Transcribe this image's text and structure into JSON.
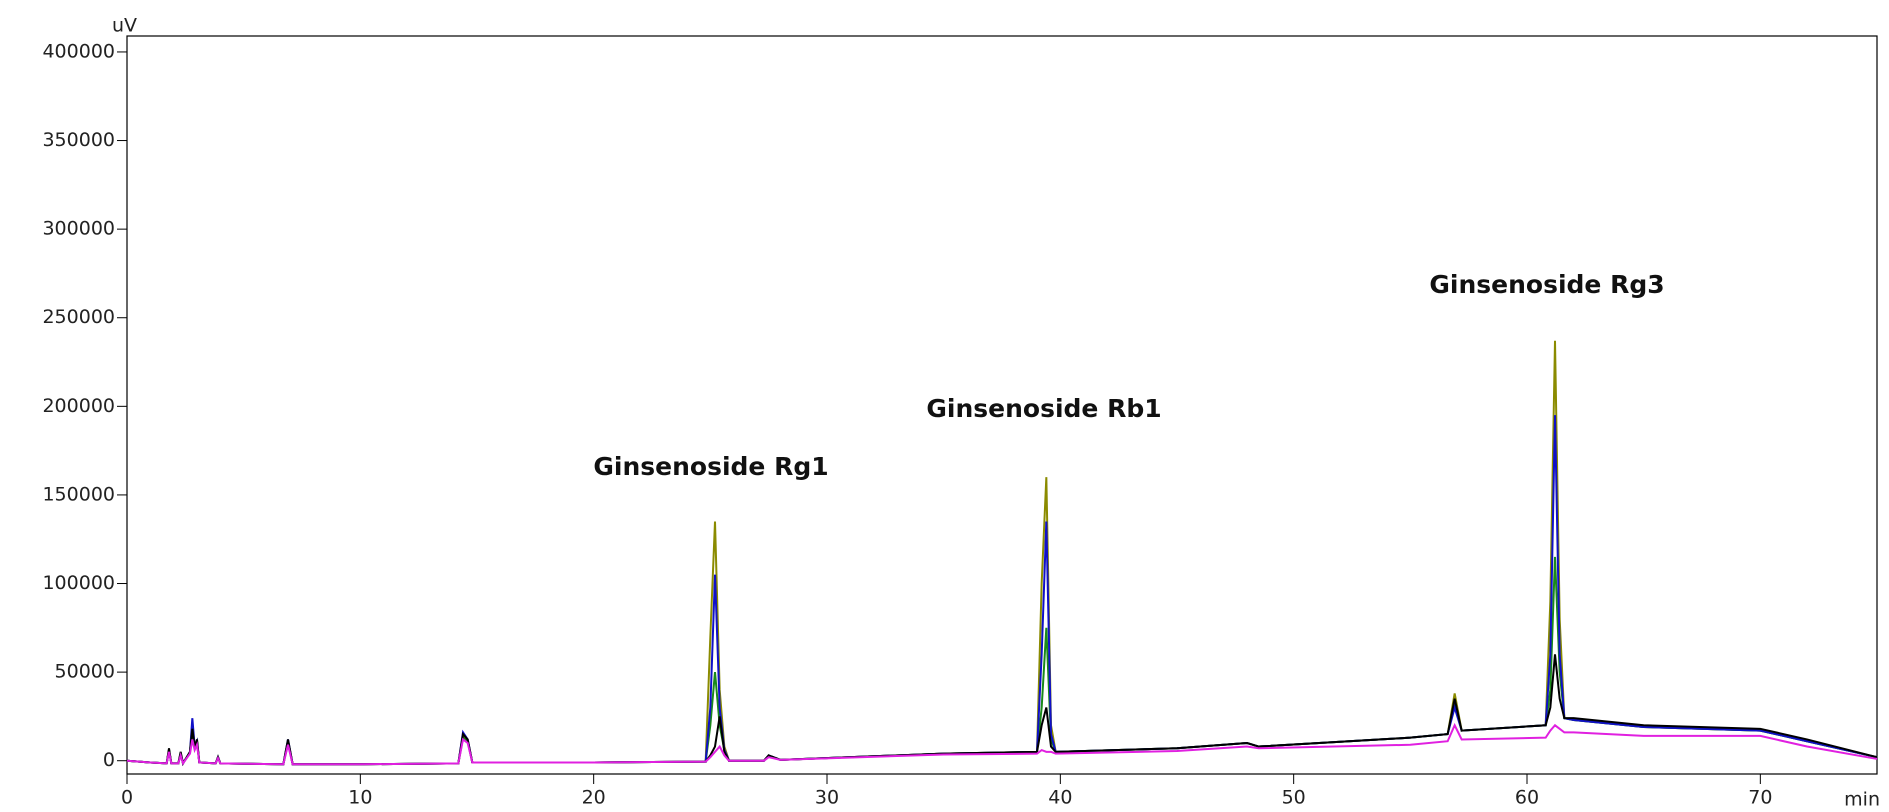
{
  "chart_data": {
    "type": "line",
    "x_label": "min",
    "y_label": "uV",
    "annotations": [
      "Ginsenoside Rg1",
      "Ginsenoside Rb1",
      "Ginsenoside Rg3"
    ],
    "xlim": [
      0,
      75
    ],
    "xticks": [
      0,
      10,
      20,
      30,
      40,
      50,
      60,
      70
    ],
    "ylim": [
      -7500,
      409000
    ],
    "yticks": [
      0,
      50000,
      100000,
      150000,
      200000,
      250000,
      300000,
      350000,
      400000
    ],
    "x": [
      0,
      1,
      1.7,
      1.8,
      1.9,
      2.2,
      2.3,
      2.4,
      2.7,
      2.8,
      2.9,
      3.0,
      3.1,
      3.8,
      3.9,
      4.0,
      6.7,
      6.9,
      7.1,
      10,
      14.2,
      14.4,
      14.6,
      14.8,
      20,
      24.8,
      25.0,
      25.2,
      25.4,
      25.6,
      25.8,
      27.3,
      27.5,
      28,
      35,
      39.0,
      39.2,
      39.4,
      39.6,
      39.8,
      45,
      48,
      48.5,
      55,
      56.6,
      56.9,
      57.2,
      60.8,
      61.0,
      61.2,
      61.4,
      61.6,
      62,
      65,
      70,
      72,
      75
    ],
    "series": [
      {
        "color": "#8b8b00",
        "values": [
          0,
          -1000,
          -1500,
          6000,
          -1500,
          -1500,
          4000,
          -1500,
          5000,
          20000,
          8000,
          11000,
          -1000,
          -1500,
          2000,
          -1500,
          -2000,
          11000,
          -2000,
          -2000,
          -1500,
          14000,
          11000,
          -1000,
          -1000,
          -500,
          70000,
          135000,
          40000,
          8000,
          0,
          0,
          3000,
          500,
          4000,
          5000,
          100000,
          160000,
          20000,
          5000,
          7000,
          10000,
          8000,
          13000,
          15000,
          38000,
          17000,
          20000,
          90000,
          237000,
          80000,
          24000,
          23000,
          19000,
          17000,
          11000,
          2000
        ]
      },
      {
        "color": "#1a8a1a",
        "values": [
          0,
          -1000,
          -1500,
          6000,
          -1500,
          -1500,
          4000,
          -1500,
          5000,
          16000,
          8000,
          10000,
          -1000,
          -1500,
          2000,
          -1500,
          -2000,
          10000,
          -2000,
          -2000,
          -1500,
          13000,
          11000,
          -1000,
          -1000,
          -500,
          20000,
          50000,
          20000,
          6000,
          0,
          0,
          3000,
          500,
          4000,
          5000,
          30000,
          75000,
          12000,
          5000,
          7000,
          10000,
          8000,
          13000,
          15000,
          32000,
          17000,
          20000,
          40000,
          115000,
          50000,
          24000,
          23000,
          19000,
          17000,
          11000,
          2000
        ]
      },
      {
        "color": "#1010c8",
        "values": [
          0,
          -1000,
          -1500,
          6000,
          -1500,
          -1500,
          4000,
          -1500,
          5000,
          24000,
          8000,
          11000,
          -1000,
          -1500,
          2000,
          -1500,
          -2000,
          12000,
          -2000,
          -2000,
          -1500,
          16000,
          12000,
          -1000,
          -1000,
          -500,
          30000,
          105000,
          30000,
          6000,
          0,
          0,
          3000,
          500,
          4000,
          5000,
          60000,
          135000,
          15000,
          5000,
          7000,
          10000,
          8000,
          13000,
          15000,
          30000,
          17000,
          20000,
          60000,
          195000,
          60000,
          24000,
          23000,
          19000,
          17000,
          11000,
          2000
        ]
      },
      {
        "color": "#000000",
        "values": [
          0,
          -1000,
          -1500,
          7000,
          -1500,
          -1500,
          5000,
          -1500,
          5000,
          18000,
          8000,
          12000,
          -1000,
          -1500,
          2000,
          -1500,
          -2000,
          12000,
          -2000,
          -2000,
          -1500,
          15000,
          12000,
          -1000,
          -1000,
          -500,
          3000,
          8000,
          25000,
          5000,
          0,
          0,
          3000,
          500,
          4000,
          5000,
          20000,
          30000,
          8000,
          5000,
          7000,
          10000,
          8000,
          13000,
          15000,
          35000,
          17000,
          20000,
          30000,
          60000,
          35000,
          24000,
          24000,
          20000,
          18000,
          12000,
          2000
        ]
      },
      {
        "color": "#e020e0",
        "values": [
          0,
          -1000,
          -1500,
          5000,
          -1500,
          -1500,
          3000,
          -1500,
          4000,
          12000,
          6000,
          9000,
          -1000,
          -1500,
          1500,
          -1500,
          -2000,
          9000,
          -2000,
          -2000,
          -1500,
          12000,
          10000,
          -1000,
          -1000,
          -500,
          2000,
          5000,
          8000,
          3000,
          0,
          0,
          2000,
          500,
          3500,
          4000,
          6000,
          5000,
          5000,
          4000,
          5500,
          8000,
          7000,
          9000,
          11000,
          20000,
          12000,
          13000,
          17000,
          20000,
          18000,
          16000,
          16000,
          14000,
          14000,
          8000,
          1000
        ]
      }
    ]
  }
}
